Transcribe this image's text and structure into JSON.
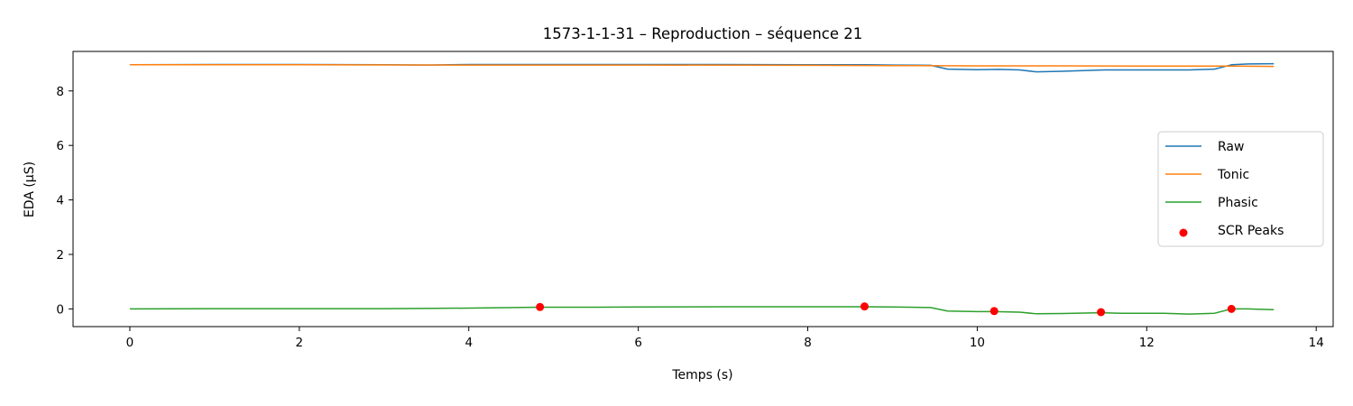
{
  "chart_data": {
    "type": "line",
    "title": "1573-1-1-31 – Reproduction – séquence 21",
    "xlabel": "Temps (s)",
    "ylabel": "EDA (µS)",
    "xlim": [
      -0.67,
      14.2
    ],
    "ylim": [
      -0.65,
      9.45
    ],
    "xticks": [
      0,
      2,
      4,
      6,
      8,
      10,
      12,
      14
    ],
    "yticks": [
      0,
      2,
      4,
      6,
      8
    ],
    "grid": false,
    "legend_position": "center-right",
    "series": [
      {
        "name": "Raw",
        "color": "#1f77b4",
        "kind": "line",
        "x": [
          0,
          1,
          2,
          3,
          3.5,
          4,
          5,
          6,
          7,
          8,
          8.7,
          9,
          9.45,
          9.65,
          10,
          10.25,
          10.5,
          10.7,
          11,
          11.5,
          12,
          12.5,
          12.8,
          13.0,
          13.2,
          13.5
        ],
        "y": [
          8.96,
          8.97,
          8.97,
          8.96,
          8.95,
          8.97,
          8.97,
          8.97,
          8.97,
          8.96,
          8.96,
          8.95,
          8.94,
          8.8,
          8.78,
          8.79,
          8.77,
          8.7,
          8.72,
          8.77,
          8.77,
          8.77,
          8.8,
          8.96,
          8.99,
          9.0
        ]
      },
      {
        "name": "Tonic",
        "color": "#ff7f0e",
        "kind": "line",
        "x": [
          0,
          2,
          4,
          6,
          8,
          9,
          10,
          11,
          12,
          13,
          13.5
        ],
        "y": [
          8.96,
          8.96,
          8.95,
          8.95,
          8.94,
          8.93,
          8.92,
          8.92,
          8.91,
          8.91,
          8.9
        ]
      },
      {
        "name": "Phasic",
        "color": "#2ca02c",
        "kind": "line",
        "x": [
          0,
          1,
          2,
          3,
          3.6,
          4,
          4.84,
          5.5,
          6,
          7,
          8,
          8.67,
          9,
          9.45,
          9.65,
          10,
          10.2,
          10.5,
          10.7,
          11,
          11.46,
          11.7,
          12.2,
          12.5,
          12.8,
          13.0,
          13.2,
          13.5
        ],
        "y": [
          0.0,
          0.01,
          0.01,
          0.01,
          0.02,
          0.03,
          0.06,
          0.06,
          0.07,
          0.08,
          0.08,
          0.08,
          0.07,
          0.05,
          -0.08,
          -0.1,
          -0.1,
          -0.12,
          -0.18,
          -0.17,
          -0.14,
          -0.16,
          -0.16,
          -0.19,
          -0.16,
          0.0,
          0.0,
          -0.03
        ]
      },
      {
        "name": "SCR Peaks",
        "color": "#ff0000",
        "kind": "scatter",
        "x": [
          4.84,
          8.67,
          10.2,
          11.46,
          13.0
        ],
        "y": [
          0.07,
          0.09,
          -0.08,
          -0.12,
          0.0
        ]
      }
    ]
  }
}
